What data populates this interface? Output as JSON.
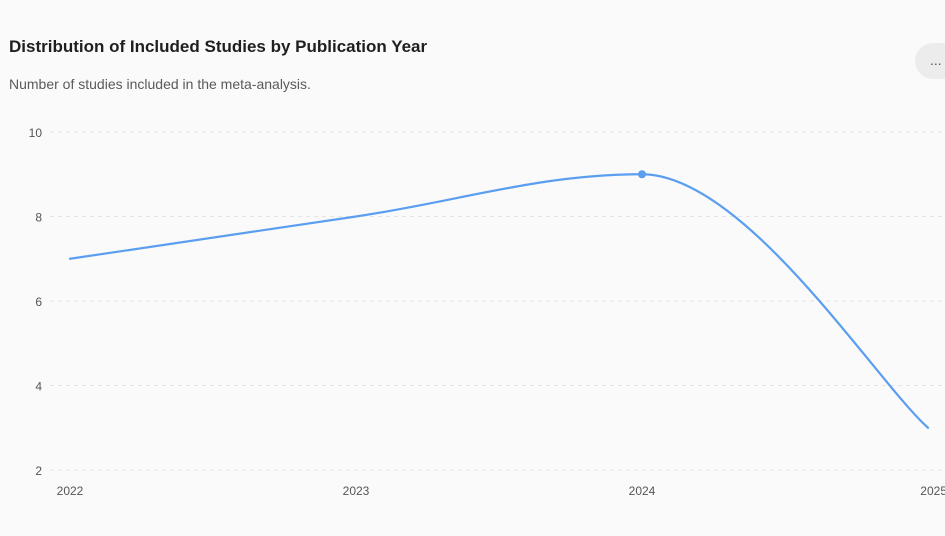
{
  "header": {
    "title": "Distribution of Included Studies by Publication Year",
    "subtitle": "Number of studies included in the meta-analysis.",
    "more_label": "..."
  },
  "icons": {
    "more": "more-options-icon"
  },
  "colors": {
    "line": "#5b9ef0",
    "grid": "#e4e4e4",
    "background": "#fafafa"
  },
  "chart_data": {
    "type": "line",
    "title": "Distribution of Included Studies by Publication Year",
    "subtitle": "Number of studies included in the meta-analysis.",
    "xlabel": "",
    "ylabel": "",
    "x": [
      "2022",
      "2023",
      "2024",
      "2025"
    ],
    "series": [
      {
        "values": [
          7,
          8,
          9,
          3
        ]
      }
    ],
    "yticks": [
      2,
      4,
      6,
      8,
      10
    ],
    "ylim": [
      2,
      10
    ],
    "grid": true,
    "curve": "smooth",
    "highlighted_point": "2024",
    "legend": "none"
  }
}
